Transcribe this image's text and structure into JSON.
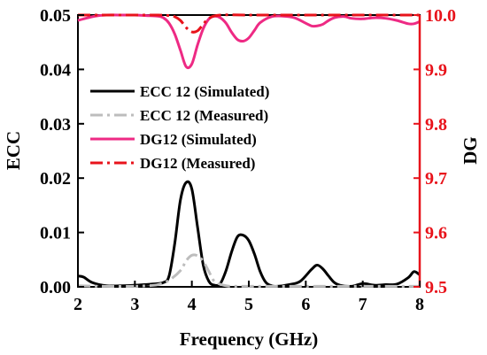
{
  "chart_data": {
    "type": "line",
    "xlabel": "Frequency (GHz)",
    "ylabel_left": "ECC",
    "ylabel_right": "DG",
    "xlim": [
      2,
      8
    ],
    "ylim_left": [
      0,
      0.05
    ],
    "ylim_right": [
      9.5,
      10.0
    ],
    "x_ticks": [
      "2",
      "3",
      "4",
      "5",
      "6",
      "7",
      "8"
    ],
    "y_ticks_left": [
      "0.00",
      "0.01",
      "0.02",
      "0.03",
      "0.04",
      "0.05"
    ],
    "y_ticks_right": [
      "9.5",
      "9.6",
      "9.7",
      "9.8",
      "9.9",
      "10.0"
    ],
    "grid": false,
    "legend_position": "center-left",
    "colors": {
      "left_axis": "#000000",
      "right_axis": "#e8131b"
    },
    "series": [
      {
        "name": "ECC 12 (Simulated)",
        "axis": "left",
        "color": "#000000",
        "style": "solid",
        "x": [
          2.0,
          2.1,
          2.25,
          2.5,
          2.8,
          3.0,
          3.3,
          3.5,
          3.6,
          3.7,
          3.8,
          3.9,
          4.0,
          4.1,
          4.2,
          4.3,
          4.4,
          4.5,
          4.6,
          4.7,
          4.8,
          4.9,
          5.0,
          5.1,
          5.2,
          5.3,
          5.4,
          5.5,
          5.7,
          5.9,
          6.1,
          6.2,
          6.3,
          6.4,
          6.5,
          6.6,
          6.8,
          7.0,
          7.2,
          7.4,
          7.6,
          7.8,
          7.9,
          8.0
        ],
        "y": [
          0.002,
          0.0018,
          0.0008,
          0.0002,
          0.0002,
          0.0003,
          0.0005,
          0.0008,
          0.002,
          0.008,
          0.016,
          0.0192,
          0.018,
          0.011,
          0.004,
          0.001,
          0.0003,
          0.0006,
          0.003,
          0.0065,
          0.0092,
          0.0095,
          0.0085,
          0.006,
          0.0028,
          0.0008,
          0.0002,
          0.0001,
          0.0004,
          0.001,
          0.0032,
          0.004,
          0.0033,
          0.002,
          0.0008,
          0.0003,
          0.0001,
          0.0006,
          0.0003,
          0.0004,
          0.0005,
          0.0017,
          0.0028,
          0.0022
        ]
      },
      {
        "name": "ECC 12 (Measured)",
        "axis": "left",
        "color": "#bdbdbd",
        "style": "dashdot",
        "x": [
          2.0,
          2.5,
          3.0,
          3.2,
          3.4,
          3.6,
          3.8,
          3.9,
          4.0,
          4.1,
          4.2,
          4.3,
          4.4,
          4.6,
          4.8,
          5.0,
          5.5,
          6.0,
          6.5,
          7.0,
          7.5,
          8.0
        ],
        "y": [
          0.0002,
          0.0001,
          0.0001,
          0.0002,
          0.0004,
          0.0012,
          0.003,
          0.0048,
          0.0058,
          0.0057,
          0.0047,
          0.0028,
          0.001,
          0.0002,
          0.0001,
          0.0001,
          0.0001,
          0.0001,
          0.0001,
          0.0001,
          0.0001,
          0.0001
        ]
      },
      {
        "name": "DG12 (Simulated)",
        "axis": "right",
        "color": "#ee2a84",
        "style": "solid",
        "x": [
          2.0,
          2.1,
          2.3,
          2.5,
          2.8,
          3.0,
          3.2,
          3.4,
          3.5,
          3.6,
          3.7,
          3.8,
          3.9,
          4.0,
          4.1,
          4.2,
          4.3,
          4.4,
          4.5,
          4.6,
          4.7,
          4.8,
          4.9,
          5.0,
          5.1,
          5.2,
          5.4,
          5.6,
          5.8,
          6.0,
          6.1,
          6.2,
          6.3,
          6.4,
          6.5,
          6.6,
          6.7,
          6.8,
          7.0,
          7.2,
          7.4,
          7.6,
          7.8,
          7.9,
          8.0
        ],
        "y": [
          9.99,
          9.993,
          9.998,
          10.0,
          10.0,
          10.0,
          9.999,
          9.998,
          9.995,
          9.985,
          9.965,
          9.935,
          9.905,
          9.91,
          9.945,
          9.975,
          9.993,
          9.998,
          9.995,
          9.985,
          9.968,
          9.955,
          9.952,
          9.958,
          9.972,
          9.986,
          9.997,
          9.998,
          9.995,
          9.985,
          9.98,
          9.98,
          9.983,
          9.99,
          9.995,
          9.997,
          9.997,
          9.994,
          9.993,
          9.995,
          9.994,
          9.99,
          9.984,
          9.984,
          9.988
        ]
      },
      {
        "name": "DG12 (Measured)",
        "axis": "right",
        "color": "#e8131b",
        "style": "dashdot",
        "x": [
          2.0,
          2.5,
          3.0,
          3.4,
          3.6,
          3.7,
          3.8,
          3.9,
          4.0,
          4.1,
          4.2,
          4.3,
          4.5,
          5.0,
          5.5,
          6.0,
          6.5,
          7.0,
          7.5,
          8.0
        ],
        "y": [
          10.0,
          10.0,
          10.0,
          10.0,
          9.999,
          9.997,
          9.99,
          9.977,
          9.969,
          9.971,
          9.983,
          9.994,
          10.0,
          10.0,
          10.0,
          10.0,
          10.0,
          10.0,
          10.0,
          10.0
        ]
      }
    ]
  }
}
